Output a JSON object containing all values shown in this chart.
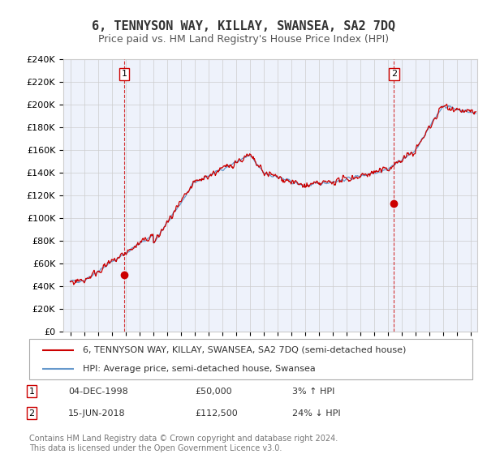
{
  "title": "6, TENNYSON WAY, KILLAY, SWANSEA, SA2 7DQ",
  "subtitle": "Price paid vs. HM Land Registry's House Price Index (HPI)",
  "ylim": [
    0,
    240000
  ],
  "yticks": [
    0,
    20000,
    40000,
    60000,
    80000,
    100000,
    120000,
    140000,
    160000,
    180000,
    200000,
    220000,
    240000
  ],
  "ytick_labels": [
    "£0",
    "£20K",
    "£40K",
    "£60K",
    "£80K",
    "£100K",
    "£120K",
    "£140K",
    "£160K",
    "£180K",
    "£200K",
    "£220K",
    "£240K"
  ],
  "sale_color": "#cc0000",
  "hpi_color": "#6699cc",
  "marker1_date": 1998.92,
  "marker1_price": 50000,
  "marker2_date": 2018.46,
  "marker2_price": 112500,
  "vline_color": "#cc0000",
  "legend_label_sale": "6, TENNYSON WAY, KILLAY, SWANSEA, SA2 7DQ (semi-detached house)",
  "legend_label_hpi": "HPI: Average price, semi-detached house, Swansea",
  "annotation1_label": "1",
  "annotation2_label": "2",
  "note1_date": "04-DEC-1998",
  "note1_price": "£50,000",
  "note1_pct": "3% ↑ HPI",
  "note2_date": "15-JUN-2018",
  "note2_price": "£112,500",
  "note2_pct": "24% ↓ HPI",
  "footer": "Contains HM Land Registry data © Crown copyright and database right 2024.\nThis data is licensed under the Open Government Licence v3.0.",
  "background_color": "#ffffff",
  "plot_bg_color": "#eef2fb",
  "grid_color": "#cccccc",
  "title_fontsize": 11,
  "subtitle_fontsize": 9,
  "tick_fontsize": 8,
  "legend_fontsize": 8,
  "footer_fontsize": 7
}
